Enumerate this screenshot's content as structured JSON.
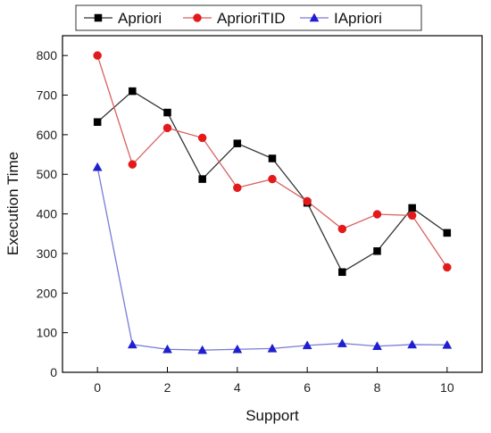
{
  "chart_data": {
    "type": "line",
    "title": "",
    "xlabel": "Support",
    "ylabel": "Execution Time",
    "xlim": [
      -1,
      11
    ],
    "ylim": [
      0,
      850
    ],
    "x_ticks": [
      "0",
      "2",
      "4",
      "6",
      "8",
      "10"
    ],
    "y_ticks": [
      "0",
      "100",
      "200",
      "300",
      "400",
      "500",
      "600",
      "700",
      "800"
    ],
    "x": [
      0,
      1,
      2,
      3,
      4,
      5,
      6,
      7,
      8,
      9,
      10
    ],
    "grid": false,
    "legend_position": "top",
    "series": [
      {
        "name": "Apriori",
        "marker": "square",
        "color": "#000000",
        "line_color": "#333333",
        "values": [
          632,
          710,
          656,
          488,
          578,
          540,
          428,
          253,
          306,
          415,
          352
        ]
      },
      {
        "name": "AprioriTID",
        "marker": "circle",
        "color": "#e31a1c",
        "line_color": "#d96060",
        "values": [
          800,
          525,
          617,
          592,
          466,
          488,
          432,
          362,
          399,
          396,
          265
        ]
      },
      {
        "name": "IApriori",
        "marker": "triangle",
        "color": "#1f1fd0",
        "line_color": "#7a7ad8",
        "values": [
          518,
          70,
          58,
          56,
          58,
          60,
          68,
          73,
          66,
          70,
          69
        ]
      }
    ]
  }
}
